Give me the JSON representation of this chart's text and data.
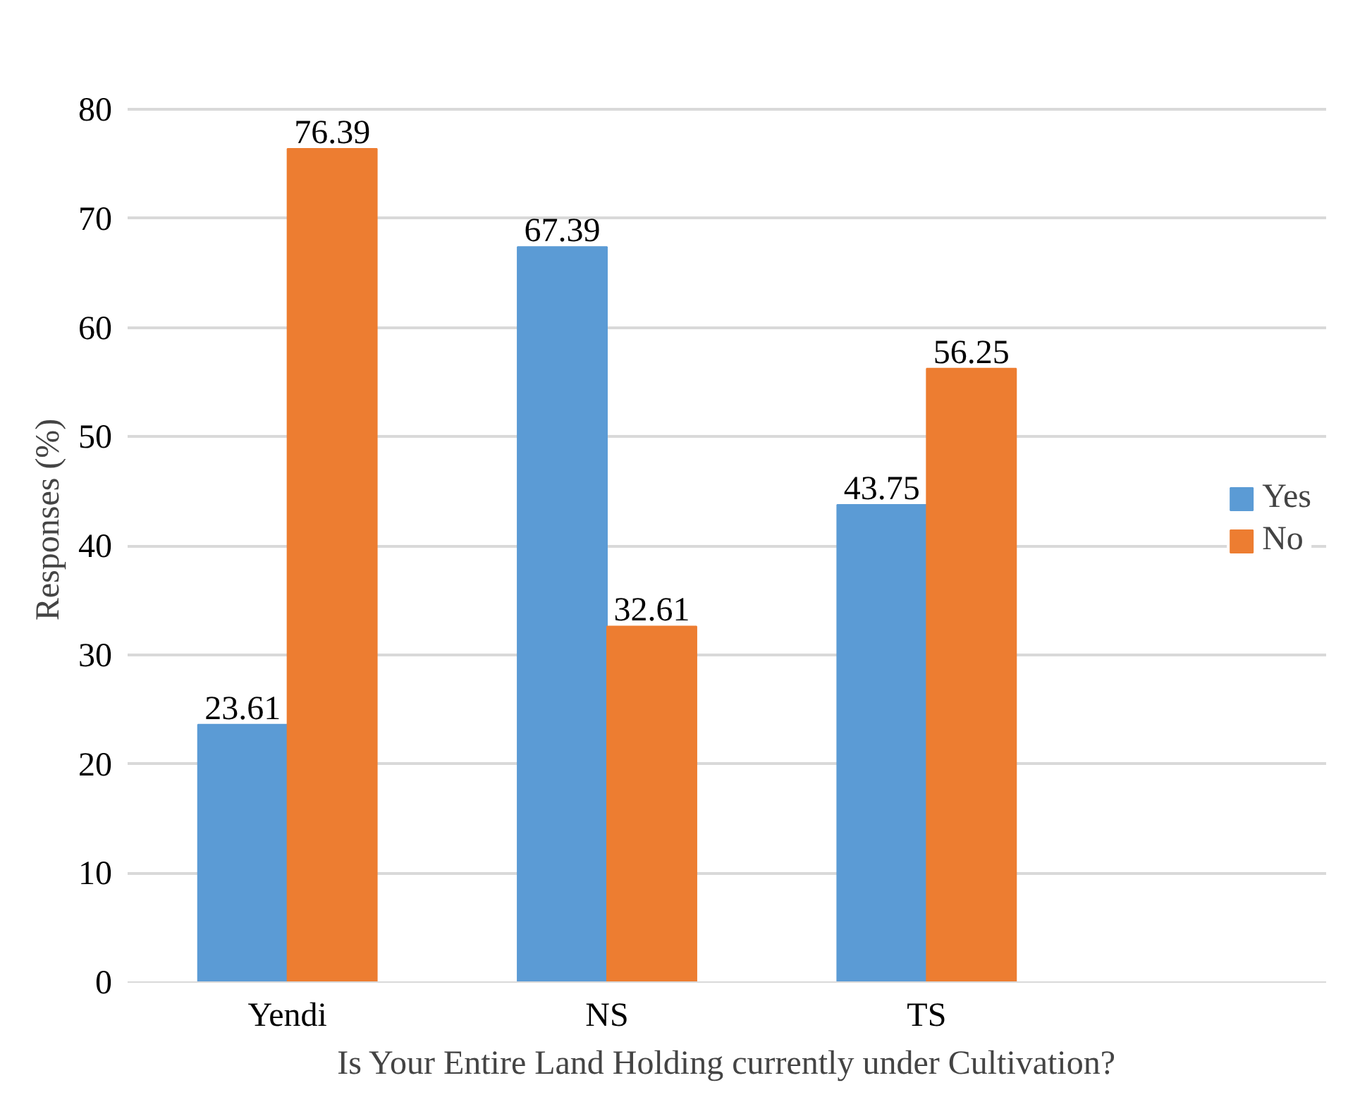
{
  "chart_data": {
    "type": "bar",
    "xlabel": "Is Your Entire Land Holding currently under Cultivation?",
    "ylabel": "Responses (%)",
    "categories": [
      "Yendi",
      "NS",
      "TS"
    ],
    "series": [
      {
        "name": "Yes",
        "color": "#5b9bd5",
        "values": [
          23.61,
          67.39,
          43.75
        ]
      },
      {
        "name": "No",
        "color": "#ed7d31",
        "values": [
          76.39,
          32.61,
          56.25
        ]
      }
    ],
    "ylim": [
      0,
      80
    ],
    "yticks": [
      0,
      10,
      20,
      30,
      40,
      50,
      60,
      70,
      80
    ],
    "grid": "y",
    "legend": "right",
    "data_labels": true
  }
}
